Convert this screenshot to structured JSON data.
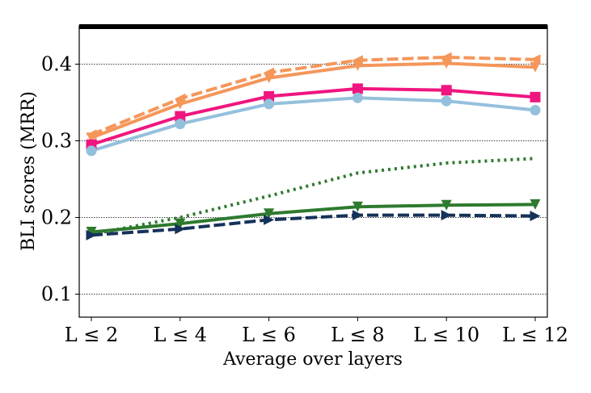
{
  "chart_data": {
    "type": "line",
    "title": "",
    "xlabel": "Average over layers",
    "ylabel": "BLI scores (MRR)",
    "categories": [
      "L ≤ 2",
      "L ≤ 4",
      "L ≤ 6",
      "L ≤ 8",
      "L ≤ 10",
      "L ≤ 12"
    ],
    "yticks": [
      "0.1",
      "0.2",
      "0.3",
      "0.4"
    ],
    "ylim": [
      0.07,
      0.45
    ],
    "grid": "horizontal dotted",
    "legend": "none",
    "series": [
      {
        "name": "orange-dashed-left",
        "color": "#f5965a",
        "dash": "dashed",
        "marker": "triangle-left",
        "values": [
          0.308,
          0.355,
          0.389,
          0.405,
          0.409,
          0.406
        ]
      },
      {
        "name": "orange-solid-down",
        "color": "#f5965a",
        "dash": "solid",
        "marker": "triangle-down",
        "values": [
          0.304,
          0.348,
          0.382,
          0.398,
          0.401,
          0.396
        ]
      },
      {
        "name": "magenta-square",
        "color": "#f0157f",
        "dash": "solid",
        "marker": "square",
        "values": [
          0.295,
          0.332,
          0.358,
          0.368,
          0.366,
          0.357
        ]
      },
      {
        "name": "lightblue-circle",
        "color": "#94c0dc",
        "dash": "solid",
        "marker": "circle",
        "values": [
          0.287,
          0.322,
          0.348,
          0.356,
          0.352,
          0.34
        ]
      },
      {
        "name": "green-dotted",
        "color": "#2e7a2e",
        "dash": "dotted",
        "marker": "none",
        "values": [
          0.178,
          0.2,
          0.228,
          0.258,
          0.271,
          0.277
        ]
      },
      {
        "name": "green-solid-down",
        "color": "#2e7a2e",
        "dash": "solid",
        "marker": "triangle-down",
        "values": [
          0.181,
          0.192,
          0.205,
          0.214,
          0.216,
          0.217
        ]
      },
      {
        "name": "navy-dashed-right",
        "color": "#15325a",
        "dash": "dashed",
        "marker": "triangle-right",
        "values": [
          0.177,
          0.185,
          0.197,
          0.203,
          0.203,
          0.202
        ]
      }
    ]
  }
}
